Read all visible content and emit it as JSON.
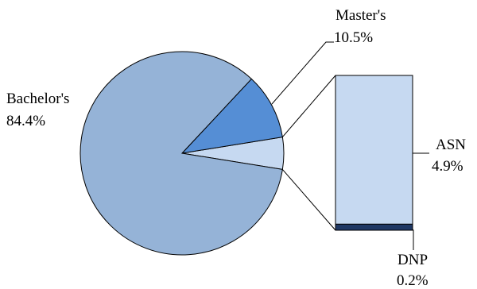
{
  "chart_data": {
    "type": "pie",
    "subtype": "pie-of-pie (bar breakout)",
    "title": "",
    "slices": [
      {
        "name": "Bachelor's",
        "value": 84.4,
        "value_label": "84.4%",
        "color": "#95b3d7"
      },
      {
        "name": "Master's",
        "value": 10.5,
        "value_label": "10.5%",
        "color": "#558ed5"
      },
      {
        "name": "ASN",
        "value": 4.9,
        "value_label": "4.9%",
        "color": "#c6d9f1",
        "in_breakout": true
      },
      {
        "name": "DNP",
        "value": 0.2,
        "value_label": "0.2%",
        "color": "#1f3864",
        "in_breakout": true
      }
    ],
    "breakout_style": "stacked bar",
    "legend": "none"
  },
  "colors": {
    "outline": "#000000",
    "background": "#ffffff"
  }
}
